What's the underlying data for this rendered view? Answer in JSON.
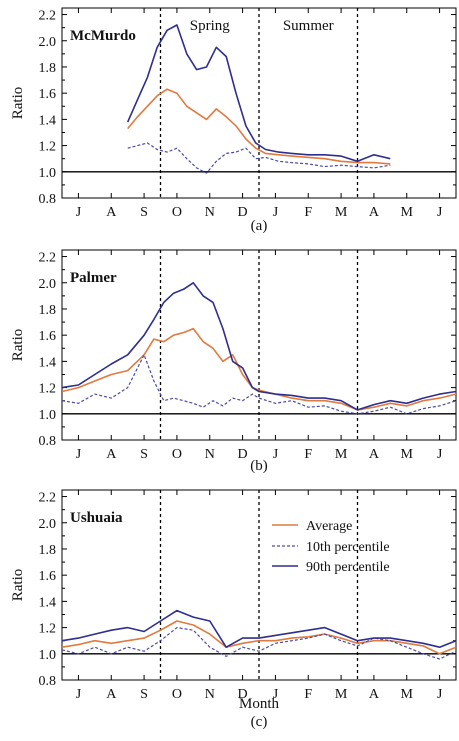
{
  "figure": {
    "xlabel": "Month",
    "ylabel": "Ratio",
    "months": [
      "J",
      "A",
      "S",
      "O",
      "N",
      "D",
      "J",
      "F",
      "M",
      "A",
      "M",
      "J"
    ],
    "yticks": [
      0.8,
      1.0,
      1.2,
      1.4,
      1.6,
      1.8,
      2.0,
      2.2
    ],
    "season_labels": [
      "Spring",
      "Summer"
    ],
    "legend": {
      "entries": [
        "Average",
        "10th percentile",
        "90th percentile"
      ],
      "placement": "right, inside panel (c)"
    },
    "colors": {
      "average": "#e07a3f",
      "p10": "#4a4aa8",
      "p90": "#2e2e8f",
      "reference": "#000000"
    }
  },
  "chart_data": [
    {
      "type": "line",
      "panel_label": "(a)",
      "station": "McMurdo",
      "xlim": [
        0,
        12
      ],
      "ylim": [
        0.8,
        2.25
      ],
      "reference_line": 1.0,
      "vlines": [
        3.0,
        6.0,
        9.0
      ],
      "series": [
        {
          "name": "Average",
          "x": [
            2.0,
            2.3,
            2.6,
            2.9,
            3.2,
            3.5,
            3.8,
            4.1,
            4.4,
            4.7,
            5.0,
            5.3,
            5.6,
            5.9,
            6.2,
            6.6,
            7.0,
            7.5,
            8.0,
            8.5,
            9.0,
            9.5,
            10.0
          ],
          "values": [
            1.33,
            1.42,
            1.5,
            1.58,
            1.63,
            1.6,
            1.5,
            1.45,
            1.4,
            1.48,
            1.42,
            1.35,
            1.25,
            1.18,
            1.14,
            1.13,
            1.12,
            1.11,
            1.1,
            1.08,
            1.07,
            1.07,
            1.06
          ]
        },
        {
          "name": "10th percentile",
          "x": [
            2.0,
            2.3,
            2.6,
            2.9,
            3.2,
            3.5,
            3.8,
            4.1,
            4.4,
            4.7,
            5.0,
            5.3,
            5.6,
            5.9,
            6.2,
            6.6,
            7.0,
            7.5,
            8.0,
            8.5,
            9.0,
            9.5,
            10.0
          ],
          "values": [
            1.18,
            1.2,
            1.22,
            1.17,
            1.15,
            1.18,
            1.1,
            1.03,
            0.99,
            1.08,
            1.14,
            1.15,
            1.18,
            1.1,
            1.11,
            1.08,
            1.07,
            1.06,
            1.04,
            1.05,
            1.04,
            1.03,
            1.05
          ]
        },
        {
          "name": "90th percentile",
          "x": [
            2.0,
            2.3,
            2.6,
            2.9,
            3.2,
            3.5,
            3.8,
            4.1,
            4.4,
            4.7,
            5.0,
            5.3,
            5.6,
            5.9,
            6.2,
            6.6,
            7.0,
            7.5,
            8.0,
            8.5,
            9.0,
            9.5,
            10.0
          ],
          "values": [
            1.38,
            1.55,
            1.72,
            1.95,
            2.08,
            2.12,
            1.9,
            1.78,
            1.8,
            1.95,
            1.88,
            1.6,
            1.35,
            1.22,
            1.17,
            1.15,
            1.14,
            1.13,
            1.13,
            1.12,
            1.08,
            1.13,
            1.1
          ]
        }
      ]
    },
    {
      "type": "line",
      "panel_label": "(b)",
      "station": "Palmer",
      "xlim": [
        0,
        12
      ],
      "ylim": [
        0.8,
        2.25
      ],
      "reference_line": 1.0,
      "vlines": [
        3.0,
        6.0,
        9.0
      ],
      "series": [
        {
          "name": "Average",
          "x": [
            0,
            0.5,
            1.0,
            1.5,
            2.0,
            2.5,
            2.8,
            3.1,
            3.4,
            3.7,
            4.0,
            4.3,
            4.6,
            4.9,
            5.2,
            5.5,
            5.8,
            6.0,
            6.5,
            7.0,
            7.5,
            8.0,
            8.5,
            9.0,
            9.5,
            10.0,
            10.5,
            11.0,
            11.5,
            12.0
          ],
          "values": [
            1.17,
            1.2,
            1.25,
            1.3,
            1.33,
            1.45,
            1.57,
            1.55,
            1.6,
            1.62,
            1.65,
            1.55,
            1.5,
            1.4,
            1.45,
            1.3,
            1.2,
            1.18,
            1.15,
            1.12,
            1.1,
            1.1,
            1.08,
            1.03,
            1.05,
            1.08,
            1.06,
            1.1,
            1.12,
            1.15
          ]
        },
        {
          "name": "10th percentile",
          "x": [
            0,
            0.5,
            1.0,
            1.5,
            2.0,
            2.5,
            2.8,
            3.1,
            3.4,
            3.7,
            4.0,
            4.3,
            4.6,
            4.9,
            5.2,
            5.5,
            5.8,
            6.0,
            6.5,
            7.0,
            7.5,
            8.0,
            8.5,
            9.0,
            9.5,
            10.0,
            10.5,
            11.0,
            11.5,
            12.0
          ],
          "values": [
            1.1,
            1.08,
            1.15,
            1.12,
            1.2,
            1.45,
            1.25,
            1.1,
            1.12,
            1.1,
            1.08,
            1.05,
            1.1,
            1.06,
            1.12,
            1.1,
            1.15,
            1.12,
            1.08,
            1.1,
            1.05,
            1.06,
            1.02,
            1.0,
            1.02,
            1.05,
            1.0,
            1.04,
            1.06,
            1.1
          ]
        },
        {
          "name": "90th percentile",
          "x": [
            0,
            0.5,
            1.0,
            1.5,
            2.0,
            2.5,
            2.8,
            3.1,
            3.4,
            3.7,
            4.0,
            4.3,
            4.6,
            4.9,
            5.2,
            5.5,
            5.8,
            6.0,
            6.5,
            7.0,
            7.5,
            8.0,
            8.5,
            9.0,
            9.5,
            10.0,
            10.5,
            11.0,
            11.5,
            12.0
          ],
          "values": [
            1.2,
            1.22,
            1.3,
            1.38,
            1.45,
            1.6,
            1.72,
            1.85,
            1.92,
            1.95,
            2.0,
            1.9,
            1.85,
            1.65,
            1.4,
            1.35,
            1.2,
            1.17,
            1.15,
            1.14,
            1.12,
            1.12,
            1.1,
            1.03,
            1.07,
            1.1,
            1.08,
            1.12,
            1.15,
            1.17
          ]
        }
      ]
    },
    {
      "type": "line",
      "panel_label": "(c)",
      "station": "Ushuaia",
      "xlim": [
        0,
        12
      ],
      "ylim": [
        0.8,
        2.25
      ],
      "reference_line": 1.0,
      "vlines": [
        3.0,
        6.0,
        9.0
      ],
      "series": [
        {
          "name": "Average",
          "x": [
            0,
            0.5,
            1.0,
            1.5,
            2.0,
            2.5,
            3.0,
            3.5,
            4.0,
            4.5,
            5.0,
            5.5,
            6.0,
            6.5,
            7.0,
            7.5,
            8.0,
            8.5,
            9.0,
            9.5,
            10.0,
            10.5,
            11.0,
            11.5,
            12.0
          ],
          "values": [
            1.05,
            1.07,
            1.1,
            1.08,
            1.1,
            1.12,
            1.18,
            1.25,
            1.22,
            1.15,
            1.05,
            1.08,
            1.1,
            1.1,
            1.12,
            1.13,
            1.15,
            1.12,
            1.08,
            1.1,
            1.1,
            1.08,
            1.06,
            1.0,
            1.05
          ]
        },
        {
          "name": "10th percentile",
          "x": [
            0,
            0.5,
            1.0,
            1.5,
            2.0,
            2.5,
            3.0,
            3.5,
            4.0,
            4.5,
            5.0,
            5.5,
            6.0,
            6.5,
            7.0,
            7.5,
            8.0,
            8.5,
            9.0,
            9.5,
            10.0,
            10.5,
            11.0,
            11.5,
            12.0
          ],
          "values": [
            1.03,
            1.0,
            1.05,
            1.0,
            1.05,
            1.02,
            1.1,
            1.2,
            1.18,
            1.05,
            0.98,
            1.05,
            1.02,
            1.08,
            1.1,
            1.12,
            1.15,
            1.1,
            1.06,
            1.12,
            1.1,
            1.05,
            1.0,
            0.96,
            1.02
          ]
        },
        {
          "name": "90th percentile",
          "x": [
            0,
            0.5,
            1.0,
            1.5,
            2.0,
            2.5,
            3.0,
            3.5,
            4.0,
            4.5,
            5.0,
            5.5,
            6.0,
            6.5,
            7.0,
            7.5,
            8.0,
            8.5,
            9.0,
            9.5,
            10.0,
            10.5,
            11.0,
            11.5,
            12.0
          ],
          "values": [
            1.1,
            1.12,
            1.15,
            1.18,
            1.2,
            1.17,
            1.25,
            1.33,
            1.28,
            1.25,
            1.05,
            1.12,
            1.12,
            1.14,
            1.16,
            1.18,
            1.2,
            1.15,
            1.1,
            1.12,
            1.12,
            1.1,
            1.08,
            1.05,
            1.1
          ]
        }
      ]
    }
  ]
}
